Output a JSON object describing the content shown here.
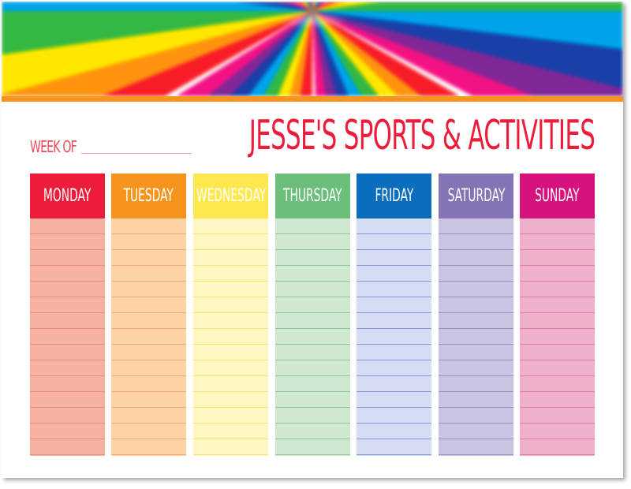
{
  "header": {
    "week_of_label": "WEEK OF",
    "title": "JESSE'S SPORTS & ACTIVITIES",
    "accent": "#f7941d",
    "title_color": "#ed1c3a"
  },
  "days": [
    {
      "label": "MONDAY",
      "head": "#ed1c3a",
      "fill": "#f7b1a3",
      "line": "#ee8a7e"
    },
    {
      "label": "TUESDAY",
      "head": "#f7941d",
      "fill": "#fdd3a6",
      "line": "#f5ad6e"
    },
    {
      "label": "WEDNESDAY",
      "head": "#ffe84f",
      "fill": "#fff6c2",
      "line": "#f7e27e"
    },
    {
      "label": "THURSDAY",
      "head": "#6bbf7a",
      "fill": "#cfe8cf",
      "line": "#8cc79a"
    },
    {
      "label": "FRIDAY",
      "head": "#0b6dbd",
      "fill": "#d5dcf3",
      "line": "#7f9ad7"
    },
    {
      "label": "SATURDAY",
      "head": "#8474b6",
      "fill": "#c9c4e2",
      "line": "#9b8fc8"
    },
    {
      "label": "SUNDAY",
      "head": "#d6127f",
      "fill": "#eeb0cb",
      "line": "#e17aa5"
    }
  ]
}
